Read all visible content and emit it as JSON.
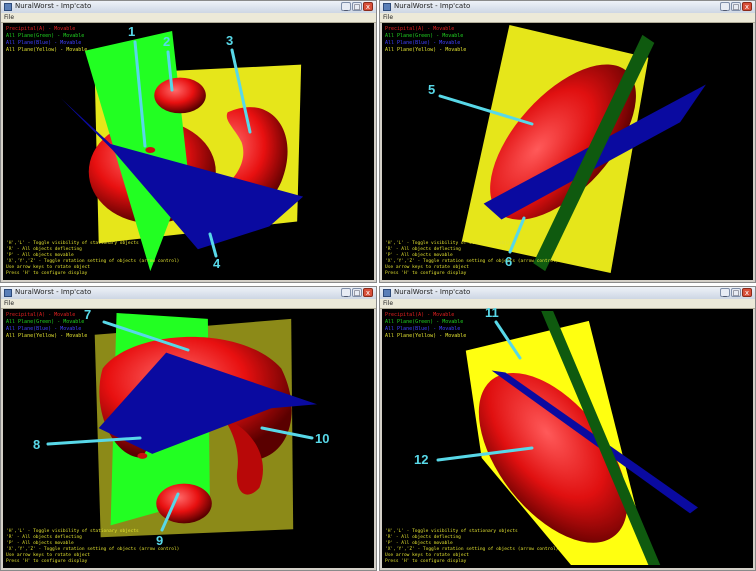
{
  "window_title": "NuralWorst - Imp'cato",
  "menu_file": "File",
  "controls": {
    "minimize": "_",
    "maximize": "□",
    "close": "x"
  },
  "legend": [
    {
      "text": "Precipital(A) - Movable",
      "color": "#e02020"
    },
    {
      "text": "All Plane(Green) - Movable",
      "color": "#20d020"
    },
    {
      "text": "All Plane(Blue) - Movable",
      "color": "#4040ff"
    },
    {
      "text": "All Plane(Yellow) - Movable",
      "color": "#e0e030"
    }
  ],
  "help": [
    "'H','L' - Toggle visibility of stationary objects",
    "'R' - All objects deflecting",
    "'P' - All objects movable",
    "'X','Y','Z' - Toggle rotation setting of objects (arrow control)",
    "Use arrow keys to rotate object",
    "Press 'H' to configure display"
  ],
  "callouts": [
    "1",
    "2",
    "3",
    "4",
    "5",
    "6",
    "7",
    "8",
    "9",
    "10",
    "11",
    "12"
  ],
  "colors": {
    "callout": "#58d8e8",
    "red_object": "#ee1010",
    "green_plane": "#22ff22",
    "yellow_plane": "#e6e61a",
    "blue_plane": "#0a0aa0",
    "background": "#000000"
  }
}
